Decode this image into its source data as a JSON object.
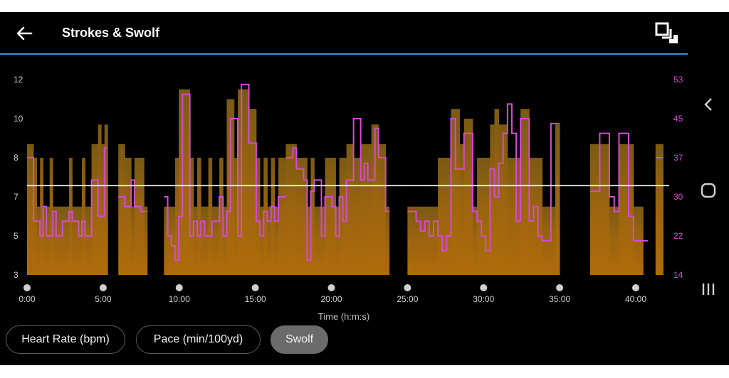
{
  "header": {
    "title": "Strokes & Swolf",
    "back_icon": "arrow-left-icon",
    "fullscreen_icon": "fullscreen-icon"
  },
  "tabs": [
    {
      "label": "Heart Rate (bpm)",
      "active": false
    },
    {
      "label": "Pace (min/100yd)",
      "active": false
    },
    {
      "label": "Swolf",
      "active": true
    }
  ],
  "nav": {
    "back": "chevron-left-icon",
    "home": "home-icon",
    "recents": "recents-icon"
  },
  "colors": {
    "bars": "#b06b0a",
    "bars_top": "#7a5a12",
    "swolf_line": "#d64bd4",
    "avg_line": "#ffffff",
    "accent": "#3a8fd0"
  },
  "chart_data": {
    "type": "bar",
    "xlabel": "Time (h:m:s)",
    "x_ticks": [
      "0:00",
      "5:00",
      "10:00",
      "15:00",
      "20:00",
      "25:00",
      "30:00",
      "35:00",
      "40:00"
    ],
    "y_left_ticks": [
      "12",
      "10",
      "8",
      "7",
      "5",
      "3"
    ],
    "y_right_ticks": [
      "53",
      "45",
      "37",
      "30",
      "22",
      "14"
    ],
    "average_swolf": 32,
    "x_range_min": [
      0,
      42
    ],
    "segments": [
      {
        "start": 0.0,
        "end": 5.3,
        "strokes": [
          8.7,
          8.7,
          8.0,
          6.5,
          8.0,
          6.5,
          6.5,
          8.0,
          6.5,
          6.5,
          6.5,
          6.5,
          6.5,
          8.0,
          6.5,
          6.5,
          6.5,
          8.0,
          6.5,
          6.5,
          8.7,
          8.7,
          9.7,
          8.7,
          9.7
        ],
        "swolf": [
          37,
          37,
          25,
          25,
          22,
          28,
          22,
          22,
          27,
          22,
          22,
          25,
          25,
          27,
          25,
          25,
          22,
          25,
          22,
          22,
          33,
          33,
          26,
          26,
          39
        ]
      },
      {
        "start": 6.0,
        "end": 7.9,
        "strokes": [
          8.7,
          8.7,
          8.0,
          8.0,
          6.5,
          8.0,
          8.0,
          8.0,
          6.5
        ],
        "swolf": [
          30,
          30,
          28,
          28,
          33,
          28,
          28,
          27,
          27
        ]
      },
      {
        "start": 9.0,
        "end": 17.0,
        "strokes": [
          6.5,
          6.5,
          6.5,
          8.0,
          11.5,
          11.5,
          11.5,
          8.0,
          6.5,
          8.0,
          6.5,
          6.5,
          8.0,
          6.5,
          6.5,
          8.0,
          6.5,
          11.0,
          11.0,
          8.0,
          11.5,
          11.5,
          11.5,
          10.5,
          10.5,
          8.0,
          6.5,
          8.0,
          6.5,
          8.0,
          6.5,
          8.0,
          8.0
        ],
        "swolf": [
          30,
          22,
          20,
          17,
          26,
          50,
          50,
          22,
          25,
          22,
          25,
          22,
          22,
          25,
          25,
          30,
          22,
          27,
          45,
          45,
          22,
          52,
          52,
          40,
          40,
          25,
          22,
          27,
          25,
          28,
          25,
          30,
          30
        ]
      },
      {
        "start": 17.0,
        "end": 23.8,
        "strokes": [
          8.7,
          8.7,
          8.7,
          8.0,
          8.0,
          8.0,
          6.5,
          8.0,
          6.5,
          6.5,
          6.5,
          8.0,
          8.0,
          8.0,
          6.5,
          8.0,
          8.0,
          8.7,
          8.7,
          8.0,
          8.0,
          8.7,
          8.7,
          8.7,
          9.7,
          9.7,
          8.7,
          8.7,
          6.5
        ],
        "swolf": [
          37,
          37,
          39,
          35,
          35,
          33,
          17,
          31,
          33,
          33,
          22,
          30,
          30,
          28,
          22,
          30,
          25,
          33,
          33,
          45,
          45,
          33,
          36,
          33,
          33,
          43,
          37,
          37,
          27
        ]
      },
      {
        "start": 25.0,
        "end": 35.0,
        "strokes": [
          6.5,
          6.5,
          6.5,
          6.5,
          6.5,
          6.5,
          6.5,
          8.0,
          8.0,
          8.0,
          10.5,
          10.5,
          8.7,
          10.0,
          10.0,
          6.5,
          8.0,
          8.0,
          8.0,
          9.7,
          10.5,
          9.7,
          9.7,
          8.0,
          8.0,
          8.0,
          10.5,
          10.5,
          8.0,
          8.0,
          8.0,
          6.5,
          6.5,
          6.5,
          9.7
        ],
        "swolf": [
          27,
          27,
          25,
          23,
          25,
          22,
          25,
          22,
          19,
          22,
          45,
          35,
          35,
          42,
          42,
          27,
          25,
          22,
          19,
          35,
          30,
          36,
          42,
          48,
          42,
          25,
          45,
          45,
          25,
          28,
          22,
          21,
          21,
          44,
          44
        ]
      },
      {
        "start": 37.0,
        "end": 40.8,
        "strokes": [
          8.7,
          8.7,
          8.7,
          8.7,
          6.5,
          6.5,
          8.7,
          8.7,
          8.7,
          6.5,
          6.5,
          3.0
        ],
        "swolf": [
          31,
          31,
          42,
          42,
          30,
          27,
          42,
          42,
          26,
          21,
          21,
          21
        ]
      },
      {
        "start": 41.3,
        "end": 41.8,
        "strokes": [
          8.7
        ],
        "swolf": [
          37
        ]
      }
    ]
  }
}
